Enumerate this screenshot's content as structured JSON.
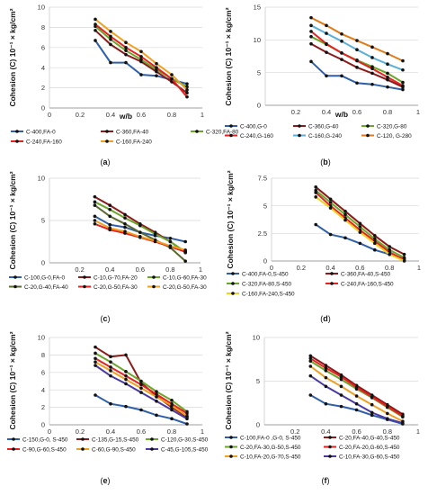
{
  "panels": [
    {
      "label": "(a)",
      "chart_data": {
        "type": "line",
        "xlabel": "w/b",
        "ylabel": "Cohesion (C) 10⁻¹ × kg/cm²",
        "xlim": [
          0,
          1
        ],
        "xticks": [
          0,
          0.2,
          0.4,
          0.6,
          0.8,
          1
        ],
        "xtick_labels": [
          "0",
          "0.2",
          "0.4",
          "0.6",
          "0.8",
          "1"
        ],
        "ylim": [
          0,
          10
        ],
        "yticks": [
          0,
          2,
          4,
          6,
          8,
          10
        ],
        "ytick_labels": [
          "0",
          "2",
          "4",
          "6",
          "8",
          "10"
        ],
        "grid": true,
        "legend_position": "bottom",
        "x": [
          0.3,
          0.4,
          0.5,
          0.6,
          0.7,
          0.8,
          0.9
        ],
        "series": [
          {
            "name": "C-400,FA-0",
            "color": "#2e5fa8",
            "values": [
              6.7,
              4.5,
              4.5,
              3.3,
              3.2,
              2.8,
              2.4
            ]
          },
          {
            "name": "C-360,FA-40",
            "color": "#8b1a1a",
            "values": [
              7.7,
              6.3,
              5.3,
              4.6,
              3.6,
              2.6,
              1.5
            ]
          },
          {
            "name": "C-320,FA-80",
            "color": "#6aa62a",
            "values": [
              8.1,
              6.8,
              5.7,
              4.8,
              3.8,
              2.9,
              2.1
            ]
          },
          {
            "name": "C-240,FA-160",
            "color": "#e52121",
            "values": [
              8.3,
              7.1,
              6.0,
              5.1,
              4.0,
              2.9,
              1.1
            ]
          },
          {
            "name": "C-160,FA-240",
            "color": "#f0a020",
            "values": [
              8.8,
              7.6,
              6.5,
              5.6,
              4.4,
              3.3,
              1.8
            ]
          }
        ]
      }
    },
    {
      "label": "(b)",
      "chart_data": {
        "type": "line",
        "xlabel": "w/b",
        "ylabel": "Cohesion (C) 10⁻¹ × kg/cm²",
        "xlim": [
          0,
          1
        ],
        "xticks": [
          0.2,
          0.4,
          0.6,
          0.8,
          1
        ],
        "xtick_labels": [
          "0.2",
          "0.4",
          "0.6",
          "0.8",
          "1"
        ],
        "ylim": [
          0,
          15
        ],
        "yticks": [
          0,
          5,
          10,
          15
        ],
        "ytick_labels": [
          "0",
          "5",
          "10",
          "15"
        ],
        "grid": true,
        "legend_position": "bottom",
        "x": [
          0.3,
          0.4,
          0.5,
          0.6,
          0.7,
          0.8,
          0.9
        ],
        "series": [
          {
            "name": "C-400,G-0",
            "color": "#2e5fa8",
            "values": [
              6.7,
              4.5,
              4.5,
              3.4,
              3.2,
              2.8,
              2.4
            ]
          },
          {
            "name": "C-360,G-40",
            "color": "#8b1a1a",
            "values": [
              9.4,
              8.1,
              7.0,
              5.8,
              4.9,
              3.9,
              2.8
            ]
          },
          {
            "name": "C-320,G-80",
            "color": "#6aa62a",
            "values": [
              10.5,
              9.3,
              8.0,
              6.9,
              5.9,
              4.9,
              3.5
            ]
          },
          {
            "name": "C-240,G-160",
            "color": "#e52121",
            "values": [
              11.3,
              9.4,
              8.0,
              6.8,
              5.6,
              4.3,
              3.0
            ]
          },
          {
            "name": "C-160,G-240",
            "color": "#5ab0d8",
            "values": [
              12.2,
              11.0,
              9.8,
              8.5,
              7.3,
              6.3,
              5.4
            ]
          },
          {
            "name": "C-120, G-280",
            "color": "#e07b18",
            "values": [
              13.4,
              12.2,
              10.9,
              9.9,
              8.9,
              7.9,
              6.8
            ]
          }
        ]
      }
    },
    {
      "label": "(c)",
      "chart_data": {
        "type": "line",
        "xlabel": "",
        "ylabel": "Cohesion (C) 10⁻¹ × kg/cm²",
        "xlim": [
          0,
          1
        ],
        "xticks": [
          0.2,
          0.4,
          0.6,
          0.8,
          1
        ],
        "xtick_labels": [
          "0.2",
          "0.4",
          "0.6",
          "0.8",
          "1"
        ],
        "ylim": [
          0,
          10
        ],
        "yticks": [
          0,
          5,
          10
        ],
        "ytick_labels": [
          "0",
          "5",
          "10"
        ],
        "grid": true,
        "legend_position": "bottom",
        "x": [
          0.3,
          0.4,
          0.5,
          0.6,
          0.7,
          0.8,
          0.9
        ],
        "series": [
          {
            "name": "C-100,G-0,FA-0",
            "color": "#2e5fa8",
            "values": [
              5.5,
              4.5,
              4.2,
              3.6,
              3.2,
              2.9,
              2.5
            ]
          },
          {
            "name": "C-10,G-70,FA-20",
            "color": "#8b1a1a",
            "values": [
              7.8,
              6.8,
              5.7,
              4.6,
              3.6,
              2.5,
              1.2
            ]
          },
          {
            "name": "C-10,G-60,FA-30",
            "color": "#6aa62a",
            "values": [
              7.2,
              6.3,
              5.3,
              4.4,
              3.4,
              2.5,
              1.3
            ]
          },
          {
            "name": "C-20,G-40,FA-40",
            "color": "#5a6a30",
            "values": [
              6.8,
              5.5,
              4.6,
              3.6,
              2.7,
              1.8,
              0.2
            ]
          },
          {
            "name": "C-20,G-50,FA-30",
            "color": "#e52121",
            "values": [
              4.6,
              3.9,
              3.5,
              3.0,
              2.5,
              1.9,
              1.3
            ]
          },
          {
            "name": "C-20,G-50,FA-30",
            "color": "#f0a020",
            "values": [
              5.0,
              4.1,
              3.7,
              3.1,
              2.6,
              2.0,
              1.5
            ]
          }
        ]
      }
    },
    {
      "label": "(d)",
      "chart_data": {
        "type": "line",
        "xlabel": "",
        "ylabel": "Cohesion (C) 10⁻¹ × kg/cm²",
        "xlim": [
          0,
          1
        ],
        "xticks": [
          0,
          0.2,
          0.4,
          0.6,
          0.8,
          1
        ],
        "xtick_labels": [
          "0",
          "0.2",
          "0.4",
          "0.6",
          "0.8",
          "1"
        ],
        "ylim": [
          0,
          7.5
        ],
        "yticks": [
          0,
          2.5,
          5,
          7.5
        ],
        "ytick_labels": [
          "0",
          "2.5",
          "5",
          "7.5"
        ],
        "grid": true,
        "legend_position": "bottom",
        "x": [
          0.3,
          0.4,
          0.5,
          0.6,
          0.7,
          0.8,
          0.9
        ],
        "series": [
          {
            "name": "C-400,FA-0,S-450",
            "color": "#2e5fa8",
            "values": [
              3.3,
              2.4,
              2.1,
              1.6,
              1.0,
              0.6,
              0.2
            ]
          },
          {
            "name": "C-360,FA-40,S-450",
            "color": "#8b1a1a",
            "values": [
              6.7,
              5.6,
              4.5,
              3.4,
              2.3,
              1.3,
              0.6
            ]
          },
          {
            "name": "C-320,FA-80,S-450",
            "color": "#6aa62a",
            "values": [
              6.4,
              5.3,
              4.2,
              3.1,
              2.0,
              1.0,
              0.3
            ]
          },
          {
            "name": "C-240,FA-160,S-450",
            "color": "#e52121",
            "values": [
              6.2,
              5.0,
              3.9,
              2.8,
              1.8,
              0.8,
              0.1
            ]
          },
          {
            "name": "C-160,FA-240,S-450",
            "color": "#f0d020",
            "values": [
              5.8,
              4.8,
              3.7,
              2.6,
              1.6,
              0.6,
              0.0
            ]
          }
        ]
      }
    },
    {
      "label": "(e)",
      "chart_data": {
        "type": "line",
        "xlabel": "",
        "ylabel": "Cohesion (C) 10⁻¹ × kg/cm²",
        "xlim": [
          0,
          1
        ],
        "xticks": [
          0,
          0.2,
          0.4,
          0.6,
          0.8,
          1
        ],
        "xtick_labels": [
          "0",
          "0.2",
          "0.4",
          "0.6",
          "0.8",
          "1"
        ],
        "ylim": [
          0,
          10
        ],
        "yticks": [
          0,
          2,
          4,
          6,
          8,
          10
        ],
        "ytick_labels": [
          "0",
          "2",
          "4",
          "6",
          "8",
          "10"
        ],
        "grid": true,
        "legend_position": "bottom",
        "x": [
          0.3,
          0.4,
          0.5,
          0.6,
          0.7,
          0.8,
          0.9
        ],
        "series": [
          {
            "name": "C-150,G-0, S-450",
            "color": "#2e5fa8",
            "values": [
              3.4,
              2.4,
              2.1,
              1.7,
              1.1,
              0.7,
              0.1
            ]
          },
          {
            "name": "C-135,G-15,S-450",
            "color": "#8b1a1a",
            "values": [
              8.9,
              7.8,
              8.0,
              4.8,
              3.3,
              2.0,
              0.9
            ]
          },
          {
            "name": "C-120,G-30,S-450",
            "color": "#6aa62a",
            "values": [
              8.2,
              7.2,
              6.1,
              5.0,
              3.8,
              2.8,
              1.5
            ]
          },
          {
            "name": "C-90,G-60,S-450",
            "color": "#e52121",
            "values": [
              7.6,
              6.6,
              5.6,
              4.6,
              3.5,
              2.4,
              1.3
            ]
          },
          {
            "name": "C-60,G-90,S-450",
            "color": "#f0a020",
            "values": [
              7.2,
              6.2,
              5.2,
              4.2,
              3.2,
              2.2,
              1.0
            ]
          },
          {
            "name": "C-45,G-105,S-450",
            "color": "#4a3aa0",
            "values": [
              6.8,
              5.6,
              4.7,
              3.7,
              2.7,
              1.7,
              0.7
            ]
          }
        ]
      }
    },
    {
      "label": "(f)",
      "chart_data": {
        "type": "line",
        "xlabel": "",
        "ylabel": "Cohesion (C) 10⁻¹ × kg/cm²",
        "xlim": [
          0,
          1
        ],
        "xticks": [
          0.2,
          0.4,
          0.6,
          0.8,
          1
        ],
        "xtick_labels": [
          "0.2",
          "0.4",
          "0.6",
          "0.8",
          "1"
        ],
        "ylim": [
          0,
          10
        ],
        "yticks": [
          0,
          5,
          10
        ],
        "ytick_labels": [
          "0",
          "5",
          "10"
        ],
        "grid": true,
        "legend_position": "bottom",
        "x": [
          0.3,
          0.4,
          0.5,
          0.6,
          0.7,
          0.8,
          0.9
        ],
        "series": [
          {
            "name": "C-100,FA-0 ,G-0, S-450",
            "color": "#2e5fa8",
            "values": [
              3.4,
              2.4,
              2.1,
              1.7,
              1.1,
              0.6,
              0.1
            ]
          },
          {
            "name": "C-20,FA-40,G-40,S-450",
            "color": "#8b1a1a",
            "values": [
              7.9,
              6.8,
              5.7,
              4.5,
              3.4,
              2.3,
              1.2
            ]
          },
          {
            "name": "C-20,FA-30,G-50,S-450",
            "color": "#6aa62a",
            "values": [
              7.3,
              6.2,
              5.2,
              4.1,
              3.1,
              2.0,
              0.9
            ]
          },
          {
            "name": "C-20,FA-20,G-60,S-450",
            "color": "#e52121",
            "values": [
              7.6,
              6.5,
              5.5,
              4.3,
              3.2,
              2.1,
              1.0
            ]
          },
          {
            "name": "C-10,FA-20,G-70,S-450",
            "color": "#f0a020",
            "values": [
              6.7,
              5.4,
              4.4,
              3.3,
              2.3,
              1.3,
              0.4
            ]
          },
          {
            "name": "C-10,FA-30,G-60,S-450",
            "color": "#4a3aa0",
            "values": [
              5.6,
              4.4,
              3.4,
              2.4,
              1.4,
              0.7,
              0.2
            ]
          }
        ]
      }
    }
  ]
}
